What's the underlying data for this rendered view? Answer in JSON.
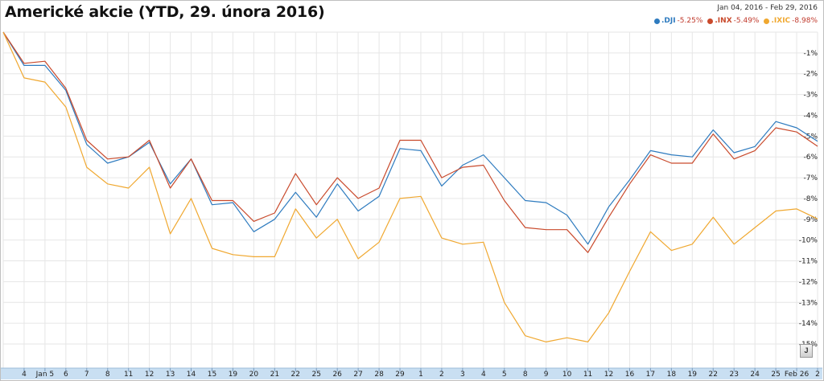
{
  "title": "Americké akcie (YTD, 29. února 2016)",
  "date_range": "Jan 04, 2016  -  Feb 29, 2016",
  "legend": [
    {
      "name": ".DJI",
      "value": "-5.25%",
      "color": "#2e7bbf"
    },
    {
      "name": ".INX",
      "value": "-5.49%",
      "color": "#c94a2c"
    },
    {
      "name": ".IXIC",
      "value": "-8.98%",
      "color": "#f0a830"
    }
  ],
  "zoom_label": "J",
  "chart_data": {
    "type": "line",
    "x": [
      "",
      "4",
      "Jan 5",
      "6",
      "7",
      "8",
      "11",
      "12",
      "13",
      "14",
      "15",
      "19",
      "20",
      "21",
      "22",
      "25",
      "26",
      "27",
      "28",
      "29",
      "1",
      "2",
      "3",
      "4",
      "5",
      "8",
      "9",
      "10",
      "11",
      "12",
      "16",
      "17",
      "18",
      "19",
      "22",
      "23",
      "24",
      "25",
      "Feb 26",
      "2"
    ],
    "y_ticks": [
      "-1%",
      "-2%",
      "-3%",
      "-4%",
      "-5%",
      "-6%",
      "-7%",
      "-8%",
      "-9%",
      "-10%",
      "-11%",
      "-12%",
      "-13%",
      "-14%",
      "-15%"
    ],
    "ylim": [
      -15.5,
      0
    ],
    "grid": true,
    "legend_position": "top-right",
    "series": [
      {
        "name": ".DJI",
        "color": "#2e7bbf",
        "values": [
          0,
          -1.6,
          -1.6,
          -2.8,
          -5.4,
          -6.3,
          -6.0,
          -5.3,
          -7.3,
          -6.1,
          -8.3,
          -8.2,
          -9.6,
          -9.0,
          -7.7,
          -8.9,
          -7.3,
          -8.6,
          -7.9,
          -5.6,
          -5.7,
          -7.4,
          -6.4,
          -5.9,
          -7.0,
          -8.1,
          -8.2,
          -8.8,
          -10.2,
          -8.4,
          -7.1,
          -5.7,
          -5.9,
          -6.0,
          -4.7,
          -5.8,
          -5.5,
          -4.3,
          -4.6,
          -5.25
        ]
      },
      {
        "name": ".INX",
        "color": "#c94a2c",
        "values": [
          0,
          -1.5,
          -1.4,
          -2.7,
          -5.2,
          -6.1,
          -6.0,
          -5.2,
          -7.5,
          -6.1,
          -8.1,
          -8.1,
          -9.1,
          -8.7,
          -6.8,
          -8.3,
          -7.0,
          -8.0,
          -7.5,
          -5.2,
          -5.2,
          -7.0,
          -6.5,
          -6.4,
          -8.1,
          -9.4,
          -9.5,
          -9.5,
          -10.6,
          -8.9,
          -7.3,
          -5.9,
          -6.3,
          -6.3,
          -4.9,
          -6.1,
          -5.7,
          -4.6,
          -4.8,
          -5.49
        ]
      },
      {
        "name": ".IXIC",
        "color": "#f0a830",
        "values": [
          0,
          -2.2,
          -2.4,
          -3.6,
          -6.5,
          -7.3,
          -7.5,
          -6.5,
          -9.7,
          -8.0,
          -10.4,
          -10.7,
          -10.8,
          -10.8,
          -8.5,
          -9.9,
          -9.0,
          -10.9,
          -10.1,
          -8.0,
          -7.9,
          -9.9,
          -10.2,
          -10.1,
          -13.0,
          -14.6,
          -14.9,
          -14.7,
          -14.9,
          -13.5,
          -11.5,
          -9.6,
          -10.5,
          -10.2,
          -8.9,
          -10.2,
          -9.4,
          -8.6,
          -8.5,
          -8.98
        ]
      }
    ]
  }
}
